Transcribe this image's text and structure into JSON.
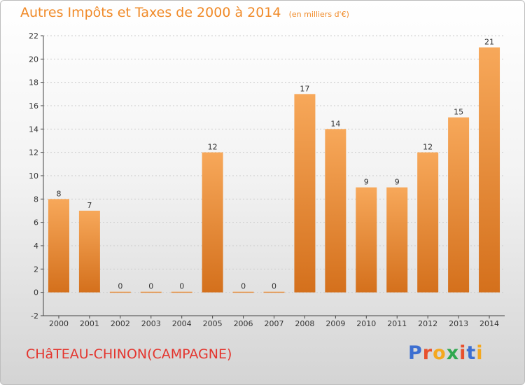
{
  "header": {
    "title": "Autres Impôts et Taxes de 2000 à 2014",
    "unit": "(en milliers d'€)"
  },
  "footer": {
    "town": "CHâTEAU-CHINON(CAMPAGNE)",
    "brand": "Proxiti",
    "brand_colors": [
      "#3d6fd1",
      "#e8502d",
      "#f4a81f",
      "#2fa84f",
      "#e8502d",
      "#3d6fd1",
      "#f4a81f"
    ]
  },
  "colors": {
    "bar_top": "#f7a85a",
    "bar_bottom": "#d4701c",
    "grid": "#cccccc",
    "axis": "#444444",
    "text": "#333333"
  },
  "chart_data": {
    "type": "bar",
    "title": "Autres Impôts et Taxes de 2000 à 2014",
    "categories": [
      "2000",
      "2001",
      "2002",
      "2003",
      "2004",
      "2005",
      "2006",
      "2007",
      "2008",
      "2009",
      "2010",
      "2011",
      "2012",
      "2013",
      "2014"
    ],
    "values": [
      8,
      7,
      0,
      0,
      0,
      12,
      0,
      0,
      17,
      14,
      9,
      9,
      12,
      15,
      21
    ],
    "ylim": [
      -2,
      22
    ],
    "yticks": [
      -2,
      0,
      2,
      4,
      6,
      8,
      10,
      12,
      14,
      16,
      18,
      20,
      22
    ],
    "grid": true,
    "xlabel": "",
    "ylabel": ""
  }
}
